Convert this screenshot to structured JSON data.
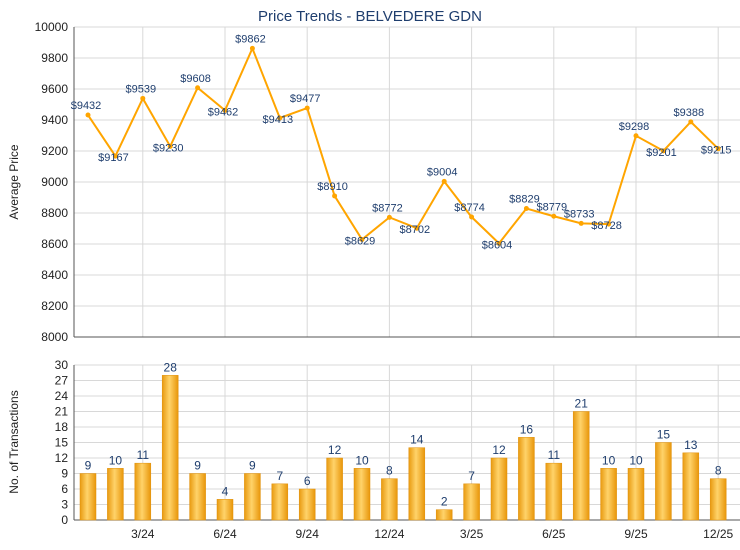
{
  "chart_data": [
    {
      "type": "line",
      "title": "Price Trends - BELVEDERE GDN",
      "ylabel": "Average Price",
      "ylim": [
        8000,
        10000
      ],
      "yticks": [
        8000,
        8200,
        8400,
        8600,
        8800,
        9000,
        9200,
        9400,
        9600,
        9800,
        10000
      ],
      "values": [
        9432,
        9167,
        9539,
        9230,
        9608,
        9462,
        9862,
        9413,
        9477,
        8910,
        8629,
        8772,
        8702,
        9004,
        8774,
        8604,
        8829,
        8779,
        8733,
        8728,
        9298,
        9201,
        9388,
        9215
      ],
      "label_prefix": "$",
      "color": "#FFA500",
      "grid": true
    },
    {
      "type": "bar",
      "ylabel": "No. of Transactions",
      "ylim": [
        0,
        30
      ],
      "yticks": [
        0,
        3,
        6,
        9,
        12,
        15,
        18,
        21,
        24,
        27,
        30
      ],
      "values": [
        9,
        10,
        11,
        28,
        9,
        4,
        9,
        7,
        6,
        12,
        10,
        8,
        14,
        2,
        7,
        12,
        16,
        11,
        21,
        10,
        10,
        15,
        13,
        8
      ],
      "xtick_labels": [
        {
          "index": 2,
          "label": "3/24"
        },
        {
          "index": 5,
          "label": "6/24"
        },
        {
          "index": 8,
          "label": "9/24"
        },
        {
          "index": 11,
          "label": "12/24"
        },
        {
          "index": 14,
          "label": "3/25"
        },
        {
          "index": 17,
          "label": "6/25"
        },
        {
          "index": 20,
          "label": "9/25"
        },
        {
          "index": 23,
          "label": "12/25"
        }
      ],
      "color": "#F5A623",
      "grid": true
    }
  ]
}
